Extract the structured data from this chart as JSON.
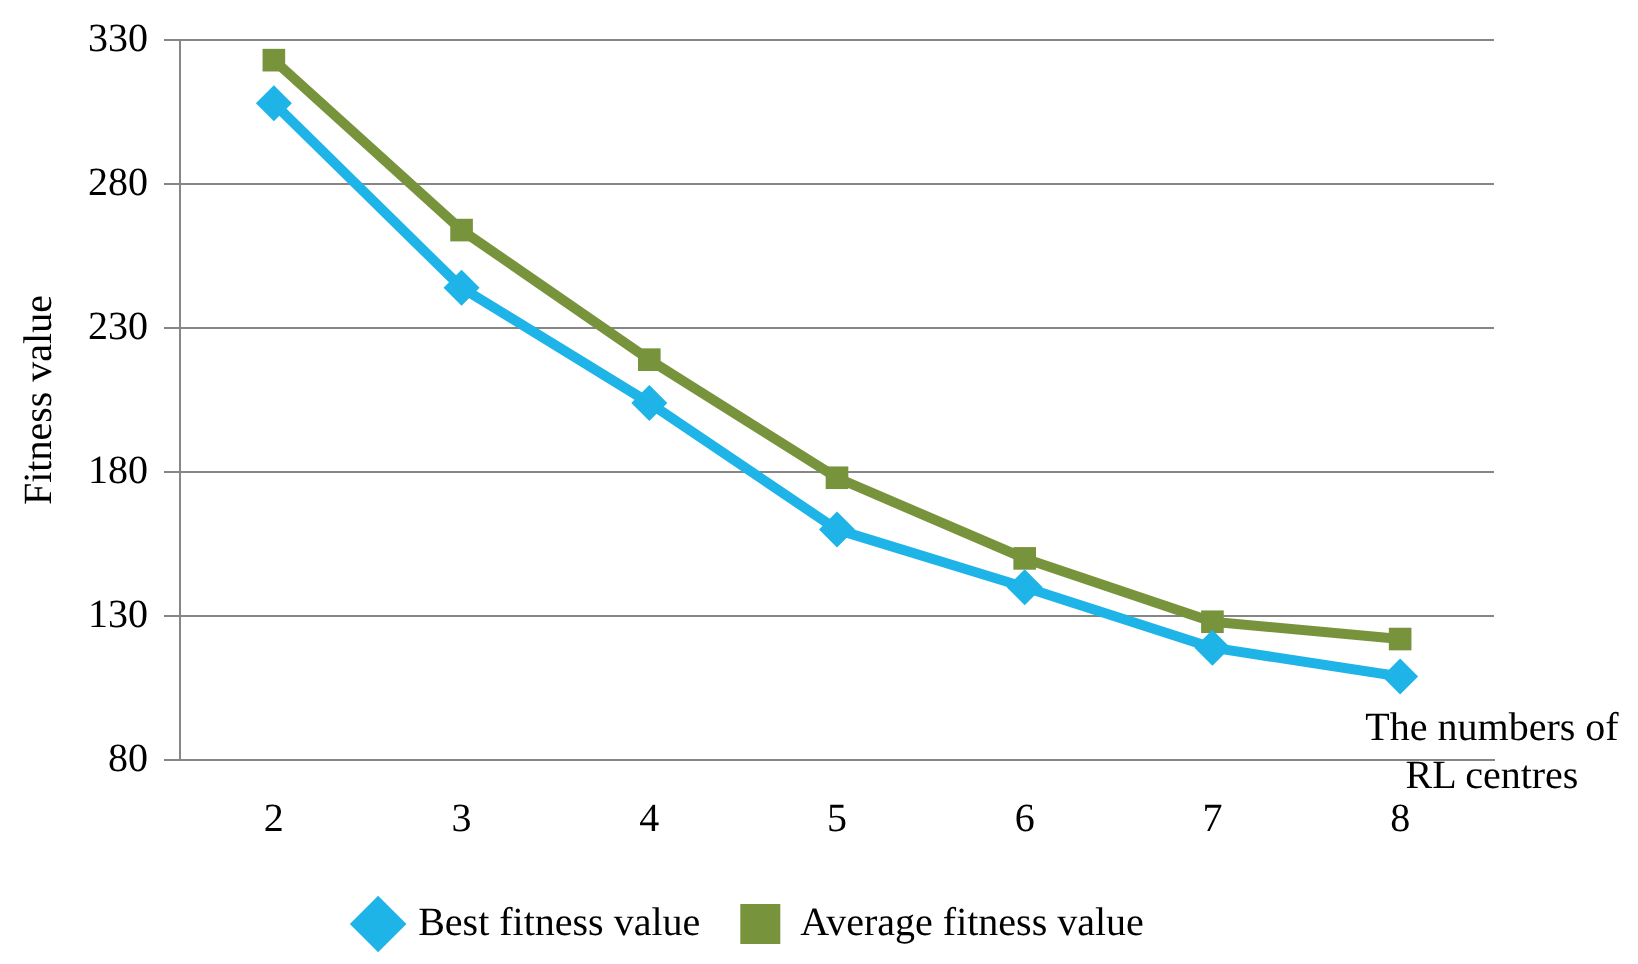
{
  "chart_data": {
    "type": "line",
    "xlabel": "The numbers of RL centres",
    "ylabel": "Fitness value",
    "categories": [
      "2",
      "3",
      "4",
      "5",
      "6",
      "7",
      "8"
    ],
    "series": [
      {
        "name": "Best fitness value",
        "color": "#1fb4e8",
        "marker": "diamond",
        "values": [
          308,
          244,
          204,
          160,
          140,
          119,
          109
        ]
      },
      {
        "name": "Average fitness value",
        "color": "#77933c",
        "marker": "square",
        "values": [
          323,
          264,
          219,
          178,
          150,
          128,
          122
        ]
      }
    ],
    "ylim": [
      80,
      330
    ],
    "yticks": [
      80,
      130,
      180,
      230,
      280,
      330
    ],
    "grid": "y",
    "legend": "bottom"
  }
}
